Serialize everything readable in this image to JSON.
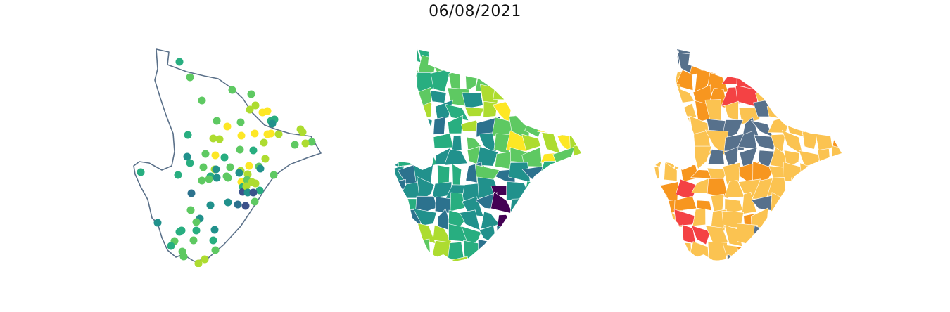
{
  "figure": {
    "title": "06/08/2021",
    "panels": [
      {
        "id": "points",
        "type": "point-map"
      },
      {
        "id": "choropleth",
        "type": "continuous-choropleth"
      },
      {
        "id": "categorical",
        "type": "categorical-choropleth"
      }
    ]
  },
  "colors": {
    "outline": "#5a7089",
    "viridis": [
      "#440154",
      "#3b528b",
      "#2c728e",
      "#21918c",
      "#28ae80",
      "#5ec962",
      "#addc30",
      "#fde725"
    ],
    "categories": {
      "slate": "#57718c",
      "orange": "#f7961f",
      "red": "#f44244",
      "yellow": "#fbc351"
    }
  }
}
